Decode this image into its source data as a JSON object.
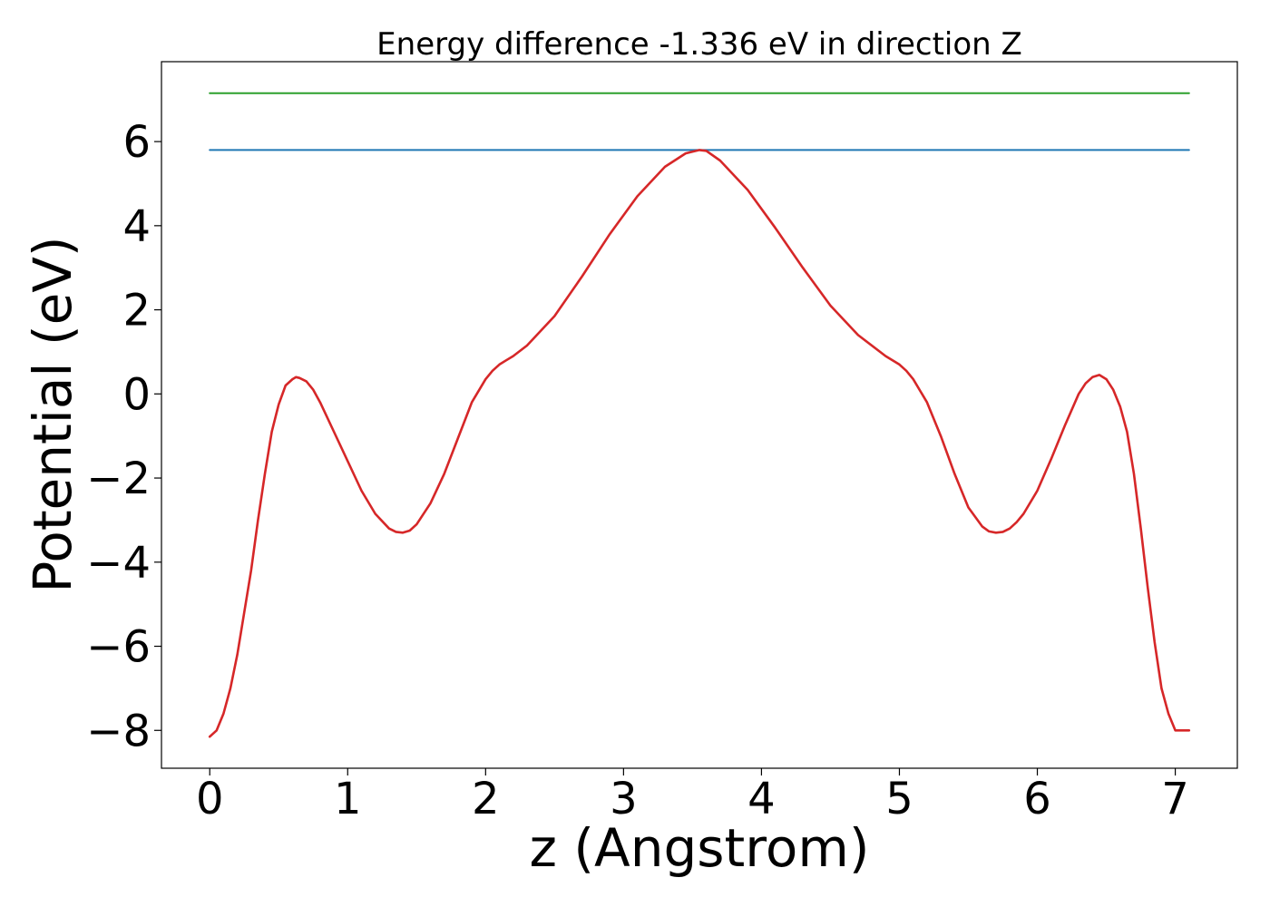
{
  "chart_data": {
    "type": "line",
    "title": "Energy difference -1.336 eV in direction Z",
    "xlabel": "z (Angstrom)",
    "ylabel": "Potential (eV)",
    "xlim": [
      -0.35,
      7.45
    ],
    "ylim": [
      -8.9,
      7.9
    ],
    "xticks": [
      0,
      1,
      2,
      3,
      4,
      5,
      6,
      7
    ],
    "xtick_labels": [
      "0",
      "1",
      "2",
      "3",
      "4",
      "5",
      "6",
      "7"
    ],
    "yticks": [
      6,
      4,
      2,
      0,
      -2,
      -4,
      -6,
      -8
    ],
    "ytick_labels": [
      "6",
      "4",
      "2",
      "0",
      "−2",
      "−4",
      "−6",
      "−8"
    ],
    "grid": false,
    "series": [
      {
        "color": "#2ca02c",
        "x": [
          0,
          7.1
        ],
        "y": [
          7.15,
          7.15
        ]
      },
      {
        "color": "#1f77b4",
        "x": [
          0,
          7.1
        ],
        "y": [
          5.8,
          5.8
        ]
      },
      {
        "color": "#d62728",
        "x": [
          0,
          0.05,
          0.1,
          0.15,
          0.2,
          0.25,
          0.3,
          0.35,
          0.4,
          0.45,
          0.5,
          0.55,
          0.6,
          0.625,
          0.65,
          0.7,
          0.75,
          0.8,
          0.9,
          1.0,
          1.1,
          1.2,
          1.3,
          1.35,
          1.4,
          1.45,
          1.5,
          1.6,
          1.7,
          1.8,
          1.9,
          2.0,
          2.05,
          2.1,
          2.15,
          2.2,
          2.3,
          2.5,
          2.7,
          2.9,
          3.1,
          3.3,
          3.45,
          3.55,
          3.6,
          3.7,
          3.9,
          4.1,
          4.3,
          4.5,
          4.7,
          4.9,
          5.0,
          5.05,
          5.1,
          5.2,
          5.3,
          5.4,
          5.5,
          5.6,
          5.65,
          5.7,
          5.75,
          5.8,
          5.85,
          5.9,
          6.0,
          6.1,
          6.2,
          6.3,
          6.35,
          6.4,
          6.45,
          6.5,
          6.55,
          6.6,
          6.65,
          6.7,
          6.75,
          6.8,
          6.85,
          6.9,
          6.95,
          7.0,
          7.05,
          7.1
        ],
        "y": [
          -8.15,
          -8.0,
          -7.6,
          -7.0,
          -6.2,
          -5.2,
          -4.2,
          -3.0,
          -1.9,
          -0.9,
          -0.25,
          0.2,
          0.35,
          0.4,
          0.38,
          0.3,
          0.1,
          -0.2,
          -0.9,
          -1.6,
          -2.3,
          -2.85,
          -3.2,
          -3.28,
          -3.3,
          -3.25,
          -3.1,
          -2.6,
          -1.9,
          -1.05,
          -0.2,
          0.35,
          0.55,
          0.7,
          0.8,
          0.9,
          1.15,
          1.85,
          2.8,
          3.8,
          4.7,
          5.4,
          5.72,
          5.8,
          5.78,
          5.55,
          4.85,
          3.95,
          3.0,
          2.1,
          1.4,
          0.9,
          0.7,
          0.55,
          0.35,
          -0.2,
          -1.0,
          -1.9,
          -2.7,
          -3.15,
          -3.27,
          -3.3,
          -3.28,
          -3.2,
          -3.05,
          -2.85,
          -2.3,
          -1.55,
          -0.75,
          0.0,
          0.25,
          0.4,
          0.45,
          0.35,
          0.1,
          -0.3,
          -0.9,
          -1.9,
          -3.2,
          -4.6,
          -5.9,
          -7.0,
          -7.6,
          -8.0,
          -8.0,
          -8.0
        ]
      }
    ]
  }
}
